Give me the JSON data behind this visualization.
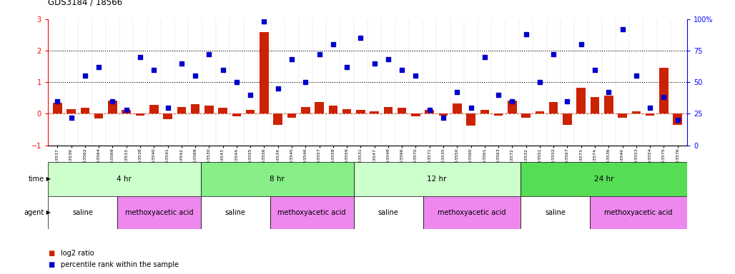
{
  "title": "GDS3184 / 18566",
  "samples": [
    "GSM253537",
    "GSM253539",
    "GSM253562",
    "GSM253564",
    "GSM253569",
    "GSM253533",
    "GSM253538",
    "GSM253540",
    "GSM253541",
    "GSM253542",
    "GSM253568",
    "GSM253530",
    "GSM253543",
    "GSM253544",
    "GSM253555",
    "GSM253556",
    "GSM253534",
    "GSM253545",
    "GSM253546",
    "GSM253557",
    "GSM253558",
    "GSM253559",
    "GSM253531",
    "GSM253547",
    "GSM253548",
    "GSM253566",
    "GSM253570",
    "GSM253571",
    "GSM253535",
    "GSM253550",
    "GSM253560",
    "GSM253561",
    "GSM253563",
    "GSM253572",
    "GSM253532",
    "GSM253551",
    "GSM253552",
    "GSM253567",
    "GSM253573",
    "GSM253574",
    "GSM253536",
    "GSM253549",
    "GSM253553",
    "GSM253554",
    "GSM253575",
    "GSM253576"
  ],
  "log2_ratio": [
    0.35,
    0.15,
    0.18,
    -0.15,
    0.42,
    0.12,
    -0.05,
    0.28,
    -0.18,
    0.22,
    0.3,
    0.25,
    0.18,
    -0.08,
    0.12,
    2.6,
    -0.35,
    -0.12,
    0.22,
    0.38,
    0.25,
    0.15,
    0.12,
    0.08,
    0.22,
    0.18,
    -0.08,
    0.12,
    -0.05,
    0.32,
    -0.38,
    0.12,
    -0.05,
    0.42,
    -0.12,
    0.08,
    0.38,
    -0.35,
    0.82,
    0.52,
    0.58,
    -0.12,
    0.08,
    -0.05,
    1.45,
    -0.35
  ],
  "percentile": [
    35,
    22,
    55,
    62,
    35,
    28,
    70,
    60,
    30,
    65,
    55,
    72,
    60,
    50,
    40,
    98,
    45,
    68,
    50,
    72,
    80,
    62,
    85,
    65,
    68,
    60,
    55,
    28,
    22,
    42,
    30,
    70,
    40,
    35,
    88,
    50,
    72,
    35,
    80,
    60,
    42,
    92,
    55,
    30,
    38,
    20
  ],
  "time_groups": [
    {
      "label": "4 hr",
      "start": 0,
      "end": 11,
      "color": "#ccffcc"
    },
    {
      "label": "8 hr",
      "start": 11,
      "end": 22,
      "color": "#88ee88"
    },
    {
      "label": "12 hr",
      "start": 22,
      "end": 34,
      "color": "#ccffcc"
    },
    {
      "label": "24 hr",
      "start": 34,
      "end": 46,
      "color": "#55dd55"
    }
  ],
  "agent_groups": [
    {
      "label": "saline",
      "start": 0,
      "end": 5,
      "color": "#ffffff"
    },
    {
      "label": "methoxyacetic acid",
      "start": 5,
      "end": 11,
      "color": "#ee88ee"
    },
    {
      "label": "saline",
      "start": 11,
      "end": 16,
      "color": "#ffffff"
    },
    {
      "label": "methoxyacetic acid",
      "start": 16,
      "end": 22,
      "color": "#ee88ee"
    },
    {
      "label": "saline",
      "start": 22,
      "end": 27,
      "color": "#ffffff"
    },
    {
      "label": "methoxyacetic acid",
      "start": 27,
      "end": 34,
      "color": "#ee88ee"
    },
    {
      "label": "saline",
      "start": 34,
      "end": 39,
      "color": "#ffffff"
    },
    {
      "label": "methoxyacetic acid",
      "start": 39,
      "end": 46,
      "color": "#ee88ee"
    }
  ],
  "bar_color": "#cc2200",
  "dot_color": "#0000cc",
  "ylim_left": [
    -1,
    3
  ],
  "ylim_right": [
    0,
    100
  ],
  "yticks_left": [
    -1,
    0,
    1,
    2,
    3
  ],
  "yticks_right": [
    0,
    25,
    50,
    75,
    100
  ],
  "hline_y": [
    1,
    2
  ],
  "background_color": "#ffffff"
}
